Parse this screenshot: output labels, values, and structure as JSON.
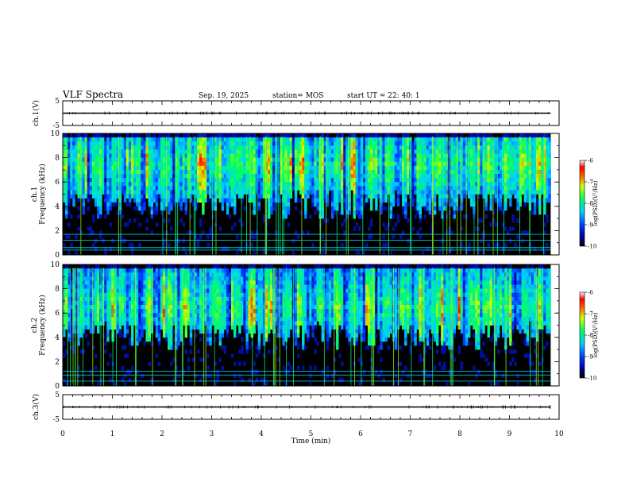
{
  "header": {
    "title": "VLF Spectra",
    "date": "Sep. 19, 2025",
    "station": "station= MOS",
    "start": "start  UT =   22: 40: 1"
  },
  "colors": {
    "spec_low": "#000000",
    "spec_mid": "#00c8ff",
    "spec_high": "#ff0000"
  },
  "chart_data": [
    {
      "type": "line",
      "id": "ch1-waveform",
      "ylabel": "ch.1(V)",
      "ylim": [
        -5,
        5
      ],
      "yticks": [
        5,
        -5
      ],
      "xlim": [
        0,
        10
      ],
      "x": [
        0,
        1,
        2,
        3,
        4,
        5,
        6,
        7,
        8,
        9,
        9.83
      ],
      "y": [
        0,
        0,
        0,
        0,
        0,
        0,
        0,
        0,
        0,
        0,
        0
      ]
    },
    {
      "type": "heatmap",
      "id": "ch1-spectrogram",
      "ylabel": "ch.1",
      "ylabel2": "Frequency (kHz)",
      "ylim": [
        0,
        10
      ],
      "yticks": [
        0,
        2,
        4,
        6,
        8,
        10
      ],
      "xlim": [
        0,
        10
      ],
      "data_end_min": 9.83,
      "band_center_khz": 7.5,
      "band_low_khz": 3.0,
      "tone_lines_khz": [
        0.4,
        0.6,
        1.2,
        1.7
      ],
      "colorbar": {
        "label": "log(PSD)(V²/Hz)",
        "ticks": [
          -6,
          -7,
          -8,
          -9,
          -10
        ],
        "range": [
          -10,
          -6
        ]
      }
    },
    {
      "type": "heatmap",
      "id": "ch2-spectrogram",
      "ylabel": "ch.2",
      "ylabel2": "Frequency (kHz)",
      "ylim": [
        0,
        10
      ],
      "yticks": [
        0,
        2,
        4,
        6,
        8,
        10
      ],
      "xlim": [
        0,
        10
      ],
      "data_end_min": 9.83,
      "band_center_khz": 6.5,
      "band_low_khz": 3.0,
      "tone_lines_khz": [
        0.4,
        0.9,
        1.2
      ],
      "colorbar": {
        "label": "log(PSD)(V²/Hz)",
        "ticks": [
          -6,
          -7,
          -8,
          -9,
          -10
        ],
        "range": [
          -10,
          -6
        ]
      }
    },
    {
      "type": "line",
      "id": "ch3-waveform",
      "ylabel": "ch.3(V)",
      "ylim": [
        -5,
        5
      ],
      "yticks": [
        5,
        -5
      ],
      "xlim": [
        0,
        10
      ],
      "x": [
        0,
        1,
        2,
        3,
        4,
        5,
        6,
        7,
        8,
        9,
        9.83
      ],
      "y": [
        0,
        0,
        0,
        0,
        0,
        0,
        0,
        0,
        0,
        0,
        0
      ]
    }
  ],
  "xaxis": {
    "label": "Time  (min)",
    "ticks": [
      0,
      1,
      2,
      3,
      4,
      5,
      6,
      7,
      8,
      9,
      10
    ]
  }
}
